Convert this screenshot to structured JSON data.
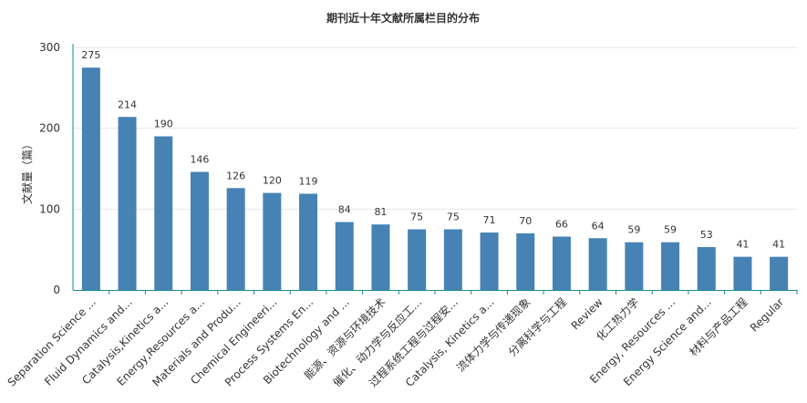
{
  "chart_data": {
    "type": "bar",
    "title": "期刊近十年文献所属栏目的分布",
    "ylabel": "文献量（篇）",
    "xlabel": "",
    "ylim": [
      0,
      300
    ],
    "yticks": [
      "0",
      "100",
      "200",
      "300"
    ],
    "categories": [
      "Separation Science ...",
      "Fluid Dynamics and...",
      "Catalysis,Kinetics a...",
      "Energy,Resources a...",
      "Materials and Produ...",
      "Chemical Engineeri...",
      "Process Systems En...",
      "Biotechnology and ...",
      "能源、资源与环境技术",
      "催化、动力学与反应工...",
      "过程系统工程与过程安...",
      "Catalysis, Kinetics a...",
      "流体力学与传递现象",
      "分离科学与工程",
      "Review",
      "化工热力学",
      "Energy, Resources ...",
      "Energy Science and...",
      "材料与产品工程",
      "Regular"
    ],
    "values": [
      275,
      214,
      190,
      146,
      126,
      120,
      119,
      84,
      81,
      75,
      75,
      71,
      70,
      66,
      64,
      59,
      59,
      53,
      41,
      41
    ],
    "bar_color": "#4682b4",
    "axis_color": "#1b8a8a",
    "grid": true
  }
}
